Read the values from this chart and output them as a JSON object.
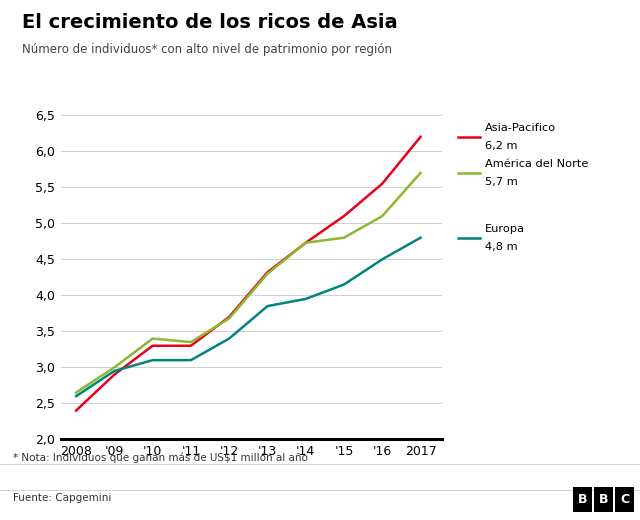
{
  "title": "El crecimiento de los ricos de Asia",
  "subtitle": "Número de individuos* con alto nivel de patrimonio por región",
  "note": "* Nota: Individuos que ganan más de US$1 millón al año",
  "source": "Fuente: Capgemini",
  "years": [
    2008,
    2009,
    2010,
    2011,
    2012,
    2013,
    2014,
    2015,
    2016,
    2017
  ],
  "asia_pacifico": [
    2.4,
    2.9,
    3.3,
    3.3,
    3.7,
    4.32,
    4.73,
    5.1,
    5.55,
    6.2
  ],
  "america_norte": [
    2.65,
    3.0,
    3.4,
    3.35,
    3.68,
    4.3,
    4.73,
    4.8,
    5.1,
    5.7
  ],
  "europa": [
    2.6,
    2.95,
    3.1,
    3.1,
    3.4,
    3.85,
    3.95,
    4.15,
    4.5,
    4.8
  ],
  "color_asia": "#e8001c",
  "color_america": "#8ab830",
  "color_europa": "#00857d",
  "ylim": [
    2.0,
    6.8
  ],
  "yticks": [
    2.0,
    2.5,
    3.0,
    3.5,
    4.0,
    4.5,
    5.0,
    5.5,
    6.0,
    6.5
  ],
  "xtick_labels": [
    "2008",
    "'09",
    "'10",
    "'11",
    "'12",
    "'13",
    "'14",
    "'15",
    "'16",
    "2017"
  ],
  "background_color": "#ffffff",
  "grid_color": "#d0d0d0",
  "legend_entries": [
    {
      "color": "#e8001c",
      "label": "Asia-Pacifico",
      "value": "6,2 m"
    },
    {
      "color": "#8ab830",
      "label": "América del Norte",
      "value": "5,7 m"
    },
    {
      "color": "#00857d",
      "label": "Europa",
      "value": "4,8 m"
    }
  ]
}
